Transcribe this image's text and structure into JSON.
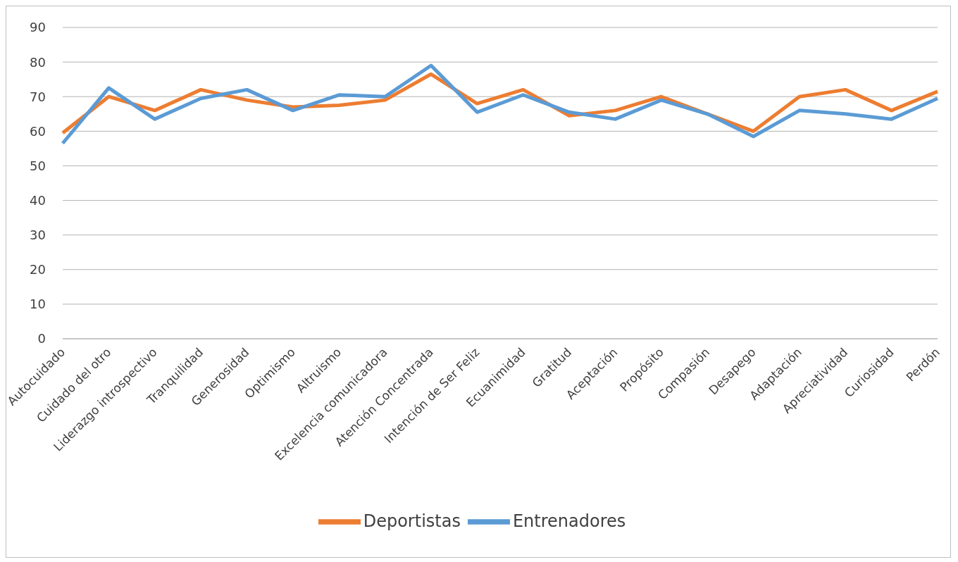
{
  "chart_data": {
    "type": "line",
    "categories": [
      "Autocuidado",
      "Cuidado del otro",
      "Liderazgo introspectivo",
      "Tranquilidad",
      "Generosidad",
      "Optimismo",
      "Altruismo",
      "Excelencia comunicadora",
      "Atención Concentrada",
      "Intención de Ser Feliz",
      "Ecuanimidad",
      "Gratitud",
      "Aceptación",
      "Propósito",
      "Compasión",
      "Desapego",
      "Adaptación",
      "Apreciatividad",
      "Curiosidad",
      "Perdón"
    ],
    "series": [
      {
        "name": "Deportistas",
        "color": "#ed7d31",
        "values": [
          59.5,
          70,
          66,
          72,
          69,
          67,
          67.5,
          69,
          76.5,
          68,
          72,
          64.5,
          66,
          70,
          65,
          60,
          70,
          72,
          66,
          71.5
        ]
      },
      {
        "name": "Entrenadores",
        "color": "#5b9bd5",
        "values": [
          56.5,
          72.5,
          63.5,
          69.5,
          72,
          66,
          70.5,
          70,
          79,
          65.5,
          70.5,
          65.5,
          63.5,
          69,
          65,
          58.5,
          66,
          65,
          63.5,
          69.5
        ]
      }
    ],
    "ylim": [
      0,
      90
    ],
    "yticks": [
      0,
      10,
      20,
      30,
      40,
      50,
      60,
      70,
      80,
      90
    ],
    "grid": "y",
    "legend": "bottom",
    "marker": "none",
    "line_style": "solid"
  }
}
